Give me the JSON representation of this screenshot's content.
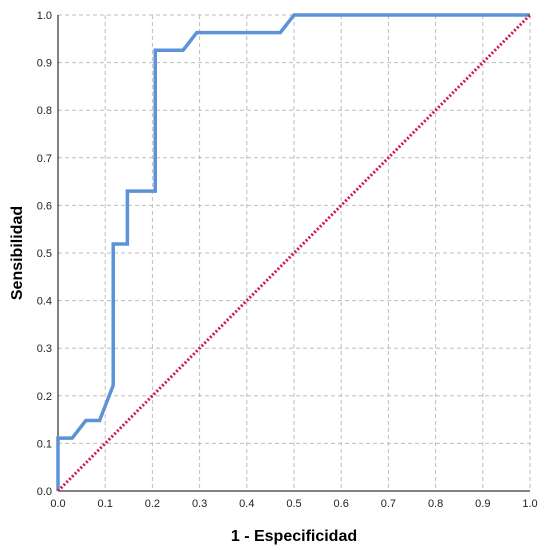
{
  "chart_data": {
    "type": "line",
    "xlabel": "1 - Especificidad",
    "ylabel": "Sensibilidad",
    "xlim": [
      0,
      1
    ],
    "ylim": [
      0,
      1
    ],
    "grid": true,
    "x_ticks": [
      "0.0",
      "0.1",
      "0.2",
      "0.3",
      "0.4",
      "0.5",
      "0.6",
      "0.7",
      "0.8",
      "0.9",
      "1.0"
    ],
    "y_ticks": [
      "0.0",
      "0.1",
      "0.2",
      "0.3",
      "0.4",
      "0.5",
      "0.6",
      "0.7",
      "0.8",
      "0.9",
      "1.0"
    ],
    "colors": {
      "roc": "#5b92d8",
      "reference": "#d21a4a",
      "grid": "#bdbdbd",
      "axis": "#000000"
    },
    "series": [
      {
        "style": "solid",
        "points": [
          [
            0.0,
            0.0
          ],
          [
            0.0,
            0.111
          ],
          [
            0.03,
            0.111
          ],
          [
            0.059,
            0.148
          ],
          [
            0.088,
            0.148
          ],
          [
            0.117,
            0.222
          ],
          [
            0.117,
            0.519
          ],
          [
            0.147,
            0.519
          ],
          [
            0.147,
            0.63
          ],
          [
            0.206,
            0.63
          ],
          [
            0.206,
            0.926
          ],
          [
            0.265,
            0.926
          ],
          [
            0.294,
            0.963
          ],
          [
            0.471,
            0.963
          ],
          [
            0.5,
            1.0
          ],
          [
            1.0,
            1.0
          ]
        ]
      },
      {
        "style": "dotted",
        "points": [
          [
            0.0,
            0.0
          ],
          [
            1.0,
            1.0
          ]
        ]
      }
    ]
  }
}
